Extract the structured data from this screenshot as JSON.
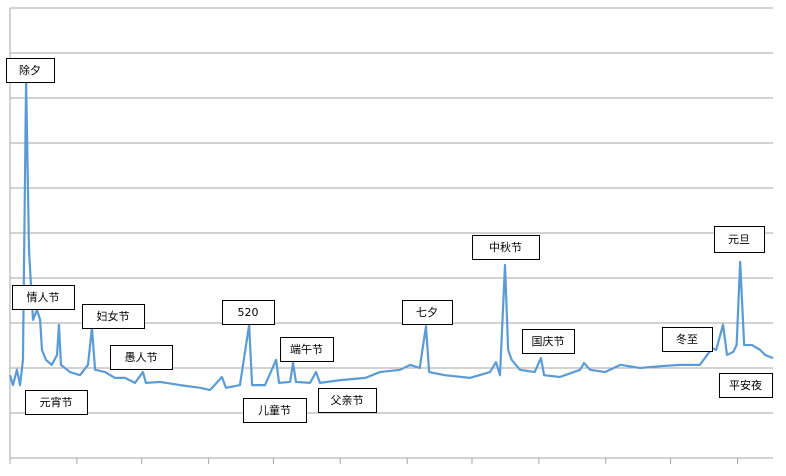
{
  "chart_data": {
    "type": "line",
    "annotations": [
      "除夕",
      "情人节",
      "元宵节",
      "妇女节",
      "愚人节",
      "520",
      "端午节",
      "儿童节",
      "父亲节",
      "七夕",
      "中秋节",
      "国庆节",
      "冬至",
      "元旦",
      "平安夜"
    ],
    "x": [
      0,
      1.4,
      3.3,
      4.8,
      6.2,
      7.7,
      9.1,
      11,
      12.9,
      14.4,
      15.3,
      17.2,
      20,
      22.5,
      23.4,
      24.4,
      28.7,
      33.5,
      37.3,
      39.2,
      40.7,
      45.5,
      50.2,
      55,
      59.8,
      63.6,
      65,
      71.8,
      81.3,
      91,
      95.7,
      101.4,
      103.3,
      110,
      114.4,
      115.8,
      122,
      127.3,
      128.7,
      134,
      135.4,
      136.8,
      143.5,
      146.4,
      148.3,
      158,
      170,
      177,
      186.6,
      191.4,
      196,
      199,
      200.5,
      208,
      220,
      229.6,
      232.5,
      234.4,
      236.8,
      238.3,
      240,
      244,
      251,
      254,
      255.5,
      263,
      272.7,
      274.6,
      277.5,
      284.7,
      292,
      301.4,
      311,
      320.5,
      330,
      335.9,
      337.8,
      341.1,
      343,
      346,
      347.6,
      349.3,
      351.2,
      355,
      358.9,
      361.2,
      365
    ],
    "series": [
      {
        "color": "#5b9bd5",
        "values": [
          1.84,
          1.62,
          1.96,
          1.62,
          2.18,
          8.4,
          4.6,
          3.07,
          3.29,
          3.07,
          2.4,
          2.18,
          2.07,
          2.29,
          2.96,
          2.07,
          1.91,
          1.84,
          2.07,
          2.89,
          1.96,
          1.91,
          1.78,
          1.78,
          1.67,
          1.91,
          1.67,
          1.69,
          1.62,
          1.56,
          1.51,
          1.8,
          1.56,
          1.62,
          2.96,
          1.62,
          1.62,
          2.18,
          1.67,
          1.69,
          2.11,
          1.69,
          1.67,
          1.91,
          1.67,
          1.73,
          1.78,
          1.91,
          1.96,
          2.07,
          2.0,
          2.93,
          1.91,
          1.84,
          1.78,
          1.91,
          2.13,
          1.84,
          4.29,
          2.4,
          2.18,
          1.96,
          1.91,
          2.22,
          1.84,
          1.8,
          1.96,
          2.11,
          1.96,
          1.91,
          2.07,
          2.0,
          2.04,
          2.07,
          2.07,
          2.44,
          2.4,
          2.96,
          2.29,
          2.36,
          2.51,
          4.36,
          2.51,
          2.51,
          2.4,
          2.29,
          2.22
        ]
      }
    ],
    "xlim": [
      0,
      365
    ],
    "xticks": [
      0,
      32,
      63,
      95,
      126,
      158,
      190,
      221,
      253,
      285,
      316,
      348
    ],
    "ylim": [
      0,
      10
    ],
    "yticks": [
      0,
      1,
      2,
      3,
      4,
      5,
      6,
      7,
      8,
      9,
      10
    ],
    "grid": true
  }
}
